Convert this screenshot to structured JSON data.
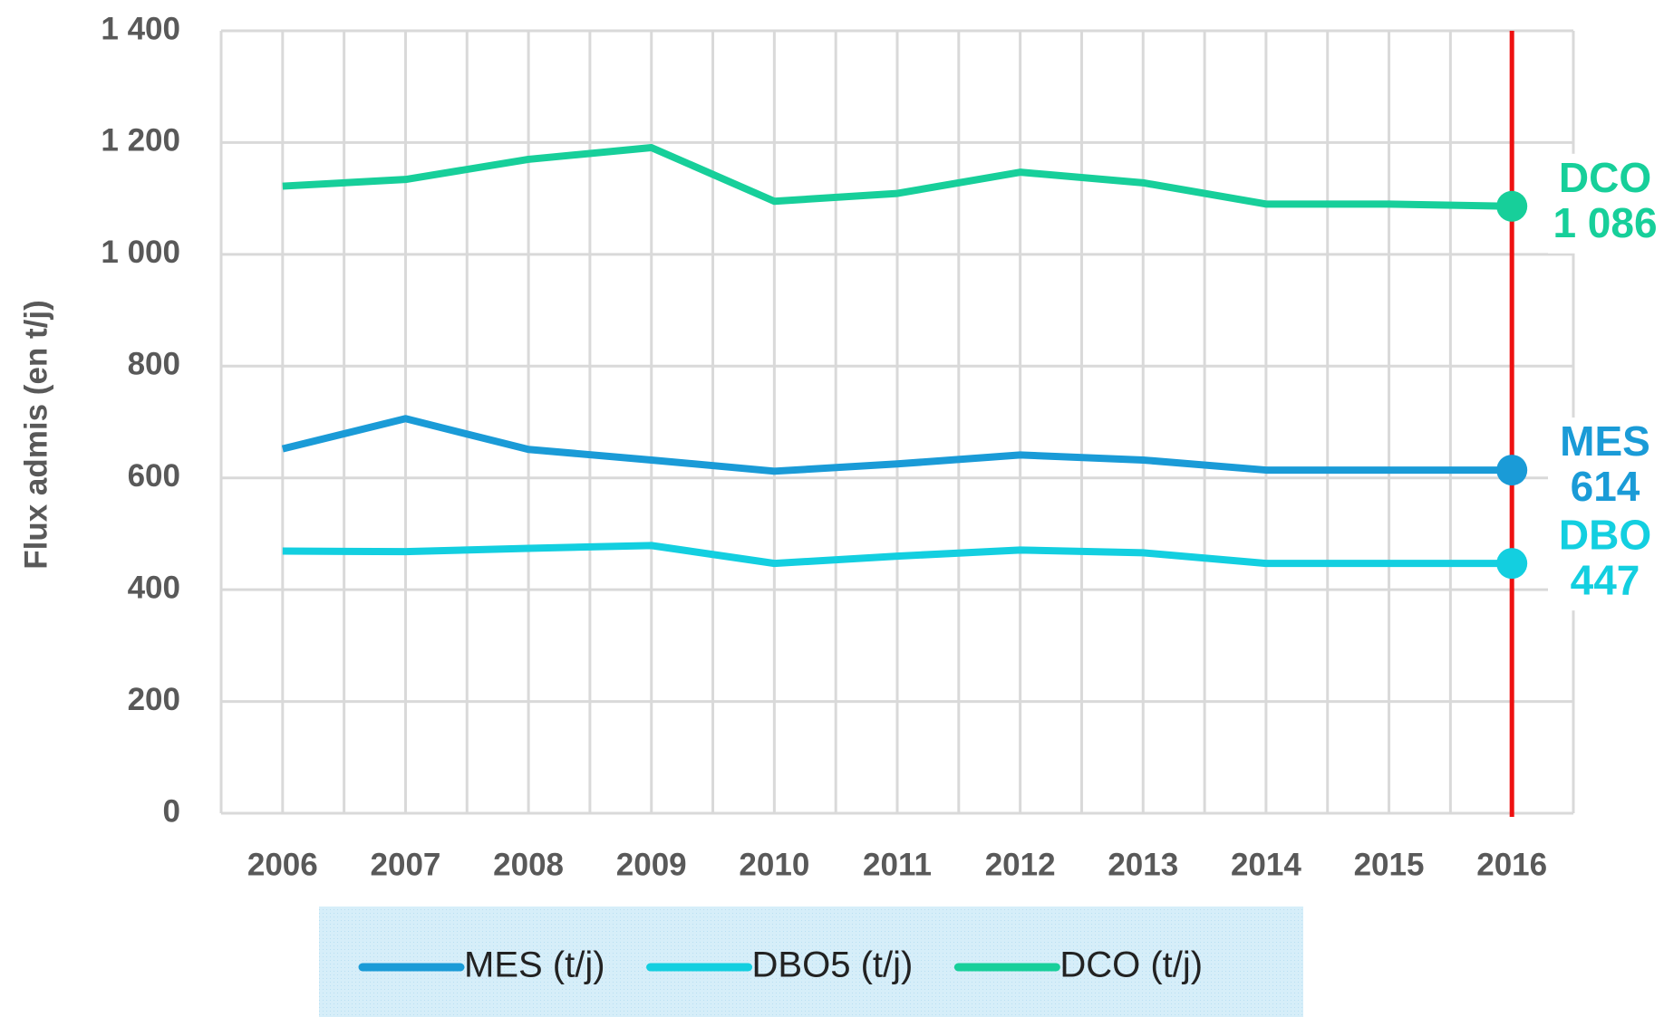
{
  "chart_data": {
    "type": "line",
    "y_axis_label": "Flux admis (en t/j)",
    "categories": [
      "2006",
      "2007",
      "2008",
      "2009",
      "2010",
      "2011",
      "2012",
      "2013",
      "2014",
      "2015",
      "2016"
    ],
    "highlight_category": "2016",
    "highlight_color": "#ee1111",
    "series": [
      {
        "name": "MES (t/j)",
        "short_name": "MES",
        "color": "#1a9bd7",
        "values": [
          652,
          706,
          651,
          632,
          612,
          625,
          641,
          632,
          614,
          614,
          614
        ],
        "value_labels": [
          null,
          null,
          null,
          null,
          null,
          null,
          null,
          null,
          null,
          null,
          "614"
        ]
      },
      {
        "name": "DBO5 (t/j)",
        "short_name": "DBO",
        "color": "#13cfe0",
        "values": [
          469,
          468,
          474,
          479,
          447,
          460,
          471,
          466,
          447,
          447,
          447
        ],
        "value_labels": [
          null,
          null,
          null,
          null,
          null,
          null,
          null,
          null,
          null,
          null,
          "447"
        ]
      },
      {
        "name": "DCO (t/j)",
        "short_name": "DCO",
        "color": "#17cf9a",
        "values": [
          1122,
          1134,
          1170,
          1191,
          1095,
          1109,
          1147,
          1128,
          1090,
          1090,
          1086
        ],
        "value_labels": [
          null,
          null,
          null,
          null,
          null,
          null,
          null,
          null,
          null,
          null,
          "1 086"
        ]
      }
    ],
    "ylim": [
      0,
      1400
    ],
    "yticks": [
      0,
      200,
      400,
      600,
      800,
      1000,
      1200,
      1400
    ],
    "ytick_labels_override": null,
    "yticks_labels": [
      "0",
      "200",
      "400",
      "600",
      "800",
      "1 000",
      "1 200",
      "1 400"
    ],
    "grid": true,
    "legend": "bottom"
  }
}
